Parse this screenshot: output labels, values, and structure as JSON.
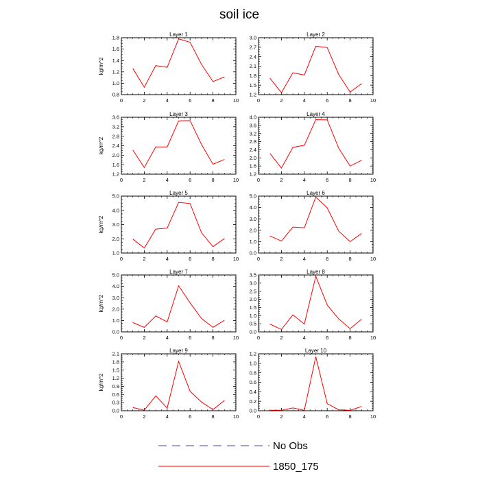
{
  "title": "soil ice",
  "legend": [
    {
      "label": "No Obs",
      "color": "#4a4a9a",
      "style": "dashed"
    },
    {
      "label": "1850_175",
      "color": "#ff0000",
      "style": "solid"
    }
  ],
  "chart_data": [
    {
      "type": "line",
      "title": "Layer 1",
      "ylabel": "kg/m^2",
      "xlim": [
        0,
        10
      ],
      "xticks": [
        0,
        2,
        4,
        6,
        8,
        10
      ],
      "ylim": [
        0.8,
        1.8
      ],
      "yticks": [
        "0.8",
        "1.0",
        "1.2",
        "1.4",
        "1.6",
        "1.8"
      ],
      "series": [
        {
          "name": "1850_175",
          "color": "#ff0000",
          "x": [
            1,
            2,
            3,
            4,
            5,
            6,
            7,
            8,
            9
          ],
          "y": [
            1.26,
            0.93,
            1.31,
            1.28,
            1.78,
            1.72,
            1.33,
            1.03,
            1.11
          ]
        }
      ]
    },
    {
      "type": "line",
      "title": "Layer 2",
      "ylabel": "",
      "xlim": [
        0,
        10
      ],
      "xticks": [
        0,
        2,
        4,
        6,
        8,
        10
      ],
      "ylim": [
        1.2,
        3.0
      ],
      "yticks": [
        "1.2",
        "1.5",
        "1.8",
        "2.1",
        "2.4",
        "2.7",
        "3.0"
      ],
      "series": [
        {
          "name": "1850_175",
          "color": "#ff0000",
          "x": [
            1,
            2,
            3,
            4,
            5,
            6,
            7,
            8,
            9
          ],
          "y": [
            1.72,
            1.26,
            1.89,
            1.82,
            2.73,
            2.69,
            1.84,
            1.28,
            1.55
          ]
        }
      ]
    },
    {
      "type": "line",
      "title": "Layer 3",
      "ylabel": "kg/m^2",
      "xlim": [
        0,
        10
      ],
      "xticks": [
        0,
        2,
        4,
        6,
        8,
        10
      ],
      "ylim": [
        1.2,
        3.6
      ],
      "yticks": [
        "1.2",
        "1.6",
        "2.0",
        "2.4",
        "2.8",
        "3.2",
        "3.6"
      ],
      "series": [
        {
          "name": "1850_175",
          "color": "#ff0000",
          "x": [
            1,
            2,
            3,
            4,
            5,
            6,
            7,
            8,
            9
          ],
          "y": [
            2.22,
            1.48,
            2.35,
            2.35,
            3.45,
            3.46,
            2.45,
            1.62,
            1.82
          ]
        }
      ]
    },
    {
      "type": "line",
      "title": "Layer 4",
      "ylabel": "",
      "xlim": [
        0,
        10
      ],
      "xticks": [
        0,
        2,
        4,
        6,
        8,
        10
      ],
      "ylim": [
        1.2,
        4.0
      ],
      "yticks": [
        "1.2",
        "1.6",
        "2.0",
        "2.4",
        "2.8",
        "3.2",
        "3.6",
        "4.0"
      ],
      "series": [
        {
          "name": "1850_175",
          "color": "#ff0000",
          "x": [
            1,
            2,
            3,
            4,
            5,
            6,
            7,
            8,
            9
          ],
          "y": [
            2.22,
            1.5,
            2.52,
            2.62,
            3.88,
            3.87,
            2.48,
            1.6,
            1.88
          ]
        }
      ]
    },
    {
      "type": "line",
      "title": "Layer 5",
      "ylabel": "kg/m^2",
      "xlim": [
        0,
        10
      ],
      "xticks": [
        0,
        2,
        4,
        6,
        8,
        10
      ],
      "ylim": [
        1.0,
        5.0
      ],
      "yticks": [
        "1.0",
        "2.0",
        "3.0",
        "4.0",
        "5.0"
      ],
      "series": [
        {
          "name": "1850_175",
          "color": "#ff0000",
          "x": [
            1,
            2,
            3,
            4,
            5,
            6,
            7,
            8,
            9
          ],
          "y": [
            1.98,
            1.35,
            2.68,
            2.75,
            4.56,
            4.48,
            2.42,
            1.45,
            2.02
          ]
        }
      ]
    },
    {
      "type": "line",
      "title": "Layer 6",
      "ylabel": "",
      "xlim": [
        0,
        10
      ],
      "xticks": [
        0,
        2,
        4,
        6,
        8,
        10
      ],
      "ylim": [
        0.0,
        5.0
      ],
      "yticks": [
        "0.0",
        "1.0",
        "2.0",
        "3.0",
        "4.0",
        "5.0"
      ],
      "series": [
        {
          "name": "1850_175",
          "color": "#ff0000",
          "x": [
            1,
            2,
            3,
            4,
            5,
            6,
            7,
            8,
            9
          ],
          "y": [
            1.5,
            1.05,
            2.28,
            2.22,
            4.92,
            3.97,
            1.92,
            1.0,
            1.72
          ]
        }
      ]
    },
    {
      "type": "line",
      "title": "Layer 7",
      "ylabel": "kg/m^2",
      "xlim": [
        0,
        10
      ],
      "xticks": [
        0,
        2,
        4,
        6,
        8,
        10
      ],
      "ylim": [
        0.0,
        5.0
      ],
      "yticks": [
        "0.0",
        "1.0",
        "2.0",
        "3.0",
        "4.0",
        "5.0"
      ],
      "series": [
        {
          "name": "1850_175",
          "color": "#ff0000",
          "x": [
            1,
            2,
            3,
            4,
            5,
            6,
            7,
            8,
            9
          ],
          "y": [
            0.82,
            0.4,
            1.4,
            0.88,
            4.05,
            2.55,
            1.18,
            0.4,
            1.02
          ]
        }
      ]
    },
    {
      "type": "line",
      "title": "Layer 8",
      "ylabel": "",
      "xlim": [
        0,
        10
      ],
      "xticks": [
        0,
        2,
        4,
        6,
        8,
        10
      ],
      "ylim": [
        0.0,
        3.5
      ],
      "yticks": [
        "0.0",
        "0.5",
        "1.0",
        "1.5",
        "2.0",
        "2.5",
        "3.0",
        "3.5"
      ],
      "series": [
        {
          "name": "1850_175",
          "color": "#ff0000",
          "x": [
            1,
            2,
            3,
            4,
            5,
            6,
            7,
            8,
            9
          ],
          "y": [
            0.48,
            0.15,
            1.05,
            0.48,
            3.42,
            1.65,
            0.8,
            0.2,
            0.78
          ]
        }
      ]
    },
    {
      "type": "line",
      "title": "Layer 9",
      "ylabel": "kg/m^2",
      "xlim": [
        0,
        10
      ],
      "xticks": [
        0,
        2,
        4,
        6,
        8,
        10
      ],
      "ylim": [
        0.0,
        2.1
      ],
      "yticks": [
        "0.0",
        "0.3",
        "0.6",
        "0.9",
        "1.2",
        "1.5",
        "1.8",
        "2.1"
      ],
      "series": [
        {
          "name": "1850_175",
          "color": "#ff0000",
          "x": [
            1,
            2,
            3,
            4,
            5,
            6,
            7,
            8,
            9
          ],
          "y": [
            0.12,
            0.02,
            0.55,
            0.1,
            1.82,
            0.72,
            0.32,
            0.04,
            0.38
          ]
        }
      ]
    },
    {
      "type": "line",
      "title": "Layer 10",
      "ylabel": "",
      "xlim": [
        0,
        10
      ],
      "xticks": [
        0,
        2,
        4,
        6,
        8,
        10
      ],
      "ylim": [
        0.0,
        1.2
      ],
      "yticks": [
        "0.0",
        "0.2",
        "0.4",
        "0.6",
        "0.8",
        "1.0",
        "1.2"
      ],
      "series": [
        {
          "name": "1850_175",
          "color": "#ff0000",
          "x": [
            1,
            2,
            3,
            4,
            5,
            6,
            7,
            8,
            9
          ],
          "y": [
            0.01,
            0.01,
            0.06,
            0.01,
            1.14,
            0.15,
            0.02,
            0.01,
            0.09
          ]
        }
      ]
    }
  ]
}
